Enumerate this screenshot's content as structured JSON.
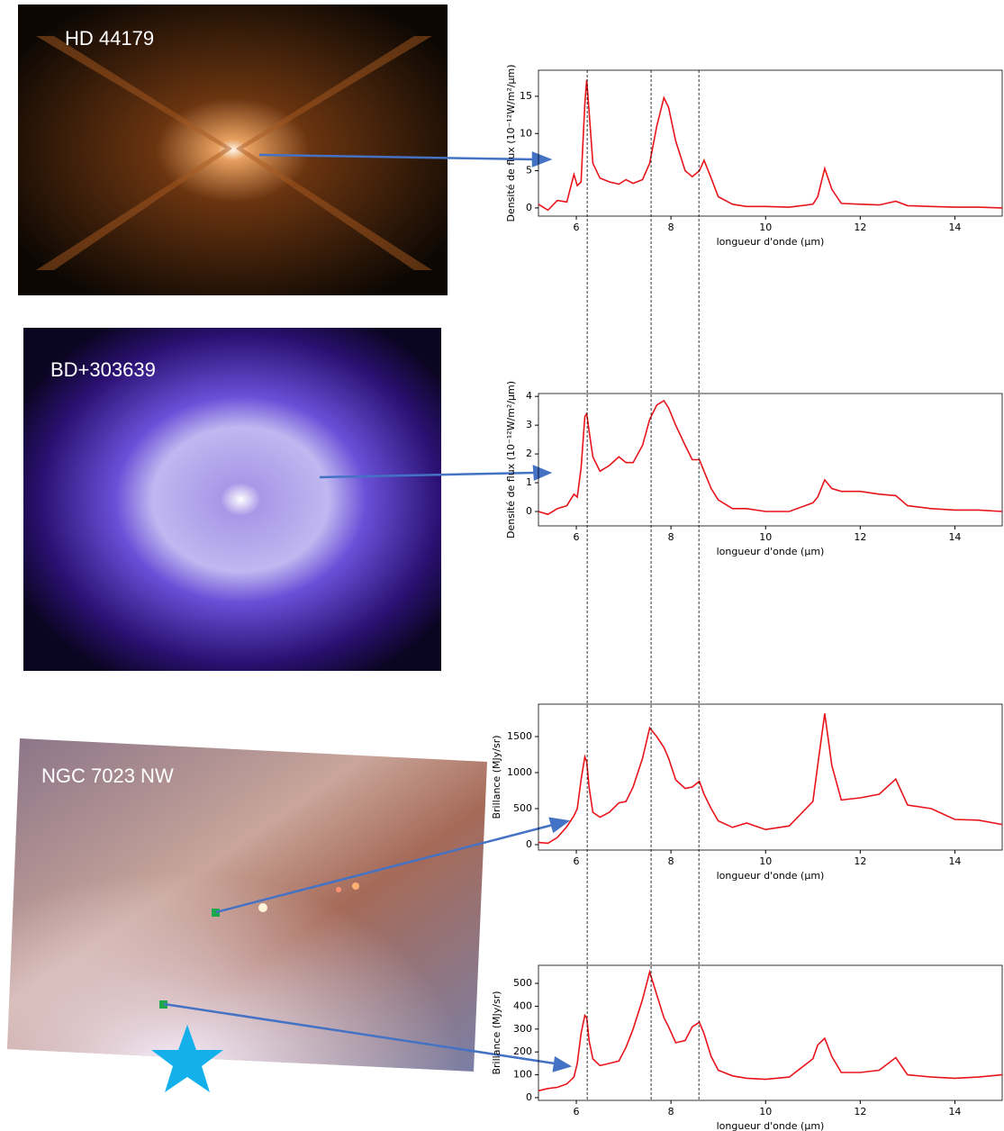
{
  "images": [
    {
      "label": "HD 44179"
    },
    {
      "label": "BD+303639"
    },
    {
      "label": "NGC 7023 NW"
    }
  ],
  "guide_lines_x": [
    6.23,
    7.58,
    8.59
  ],
  "chart_data": [
    {
      "type": "line",
      "x_label": "longueur d'onde (μm)",
      "y_label": "Densité de flux (10⁻¹²W/m²/μm)",
      "x": [
        5.2,
        5.4,
        5.6,
        5.8,
        5.95,
        6.02,
        6.1,
        6.18,
        6.22,
        6.27,
        6.35,
        6.5,
        6.7,
        6.9,
        7.05,
        7.2,
        7.4,
        7.55,
        7.7,
        7.85,
        7.95,
        8.1,
        8.3,
        8.45,
        8.6,
        8.7,
        8.85,
        9.0,
        9.3,
        9.6,
        10.0,
        10.5,
        11.0,
        11.1,
        11.25,
        11.4,
        11.6,
        12.0,
        12.4,
        12.75,
        13.0,
        13.5,
        14.0,
        14.5,
        15.0
      ],
      "values": [
        0.5,
        -0.3,
        1.0,
        0.8,
        4.5,
        3,
        3.5,
        14,
        17.2,
        13,
        6,
        4,
        3.5,
        3.2,
        3.8,
        3.3,
        3.8,
        6,
        11,
        14.8,
        13.5,
        9,
        5,
        4.2,
        5,
        6.4,
        4,
        1.5,
        0.5,
        0.2,
        0.2,
        0.1,
        0.5,
        1.5,
        5.3,
        2.5,
        0.6,
        0.5,
        0.4,
        0.9,
        0.3,
        0.2,
        0.1,
        0.1,
        0.0
      ],
      "color": "#e8141b",
      "xlim": [
        5.2,
        15
      ],
      "ylim": [
        -1.1,
        18.5
      ],
      "xticks": [
        6,
        8,
        10,
        12,
        14
      ],
      "yticks": [
        0,
        5,
        10,
        15
      ]
    },
    {
      "type": "line",
      "x_label": "longueur d'onde (μm)",
      "y_label": "Densité de flux (10⁻¹²W/m²/μm)",
      "x": [
        5.2,
        5.4,
        5.6,
        5.8,
        5.95,
        6.02,
        6.1,
        6.18,
        6.22,
        6.27,
        6.35,
        6.5,
        6.7,
        6.9,
        7.05,
        7.2,
        7.4,
        7.55,
        7.7,
        7.85,
        7.95,
        8.1,
        8.3,
        8.45,
        8.6,
        8.7,
        8.85,
        9.0,
        9.3,
        9.6,
        10.0,
        10.5,
        11.0,
        11.1,
        11.25,
        11.4,
        11.6,
        12.0,
        12.4,
        12.75,
        13.0,
        13.5,
        14.0,
        14.5,
        15.0
      ],
      "values": [
        0.0,
        -0.1,
        0.1,
        0.2,
        0.6,
        0.5,
        1.5,
        3.3,
        3.4,
        2.8,
        1.9,
        1.4,
        1.6,
        1.9,
        1.7,
        1.7,
        2.3,
        3.2,
        3.7,
        3.85,
        3.6,
        3.0,
        2.3,
        1.8,
        1.8,
        1.4,
        0.8,
        0.4,
        0.1,
        0.1,
        0.0,
        0.0,
        0.3,
        0.5,
        1.1,
        0.8,
        0.7,
        0.7,
        0.6,
        0.55,
        0.2,
        0.1,
        0.05,
        0.05,
        0.0
      ],
      "color": "#e8141b",
      "xlim": [
        5.2,
        15
      ],
      "ylim": [
        -0.5,
        4.1
      ],
      "xticks": [
        6,
        8,
        10,
        12,
        14
      ],
      "yticks": [
        0,
        1,
        2,
        3,
        4
      ]
    },
    {
      "type": "line",
      "x_label": "longueur d'onde (μm)",
      "y_label": "Brillance (MJy/sr)",
      "x": [
        5.2,
        5.4,
        5.6,
        5.8,
        5.95,
        6.02,
        6.1,
        6.18,
        6.22,
        6.27,
        6.35,
        6.5,
        6.7,
        6.9,
        7.05,
        7.2,
        7.4,
        7.55,
        7.7,
        7.85,
        7.95,
        8.1,
        8.3,
        8.45,
        8.6,
        8.7,
        8.85,
        9.0,
        9.3,
        9.6,
        10.0,
        10.5,
        11.0,
        11.1,
        11.25,
        11.4,
        11.6,
        12.0,
        12.4,
        12.75,
        13.0,
        13.5,
        14.0,
        14.5,
        15.0
      ],
      "values": [
        30,
        20,
        100,
        250,
        400,
        500,
        900,
        1220,
        1150,
        800,
        450,
        380,
        450,
        580,
        600,
        800,
        1200,
        1620,
        1500,
        1350,
        1200,
        900,
        780,
        800,
        880,
        700,
        500,
        330,
        240,
        300,
        210,
        260,
        600,
        1100,
        1820,
        1100,
        620,
        650,
        700,
        910,
        550,
        500,
        350,
        340,
        280
      ],
      "color": "#e8141b",
      "xlim": [
        5.2,
        15
      ],
      "ylim": [
        -75,
        1950
      ],
      "xticks": [
        6,
        8,
        10,
        12,
        14
      ],
      "yticks": [
        0,
        500,
        1000,
        1500
      ]
    },
    {
      "type": "line",
      "x_label": "longueur d'onde (μm)",
      "y_label": "Brillance (MJy/sr)",
      "x": [
        5.2,
        5.4,
        5.6,
        5.8,
        5.95,
        6.02,
        6.1,
        6.18,
        6.22,
        6.27,
        6.35,
        6.5,
        6.7,
        6.9,
        7.05,
        7.2,
        7.4,
        7.55,
        7.7,
        7.85,
        7.95,
        8.1,
        8.3,
        8.45,
        8.6,
        8.7,
        8.85,
        9.0,
        9.3,
        9.6,
        10.0,
        10.5,
        11.0,
        11.1,
        11.25,
        11.4,
        11.6,
        12.0,
        12.4,
        12.75,
        13.0,
        13.5,
        14.0,
        14.5,
        15.0
      ],
      "values": [
        30,
        40,
        45,
        60,
        90,
        150,
        280,
        360,
        350,
        250,
        170,
        140,
        150,
        160,
        220,
        300,
        430,
        550,
        450,
        350,
        310,
        240,
        250,
        310,
        330,
        280,
        180,
        120,
        95,
        85,
        80,
        90,
        170,
        230,
        260,
        180,
        110,
        110,
        120,
        175,
        100,
        90,
        85,
        90,
        100
      ],
      "color": "#e8141b",
      "xlim": [
        5.2,
        15
      ],
      "ylim": [
        -12,
        579
      ],
      "xticks": [
        6,
        8,
        10,
        12,
        14
      ],
      "yticks": [
        0,
        100,
        200,
        300,
        400,
        500
      ]
    }
  ]
}
